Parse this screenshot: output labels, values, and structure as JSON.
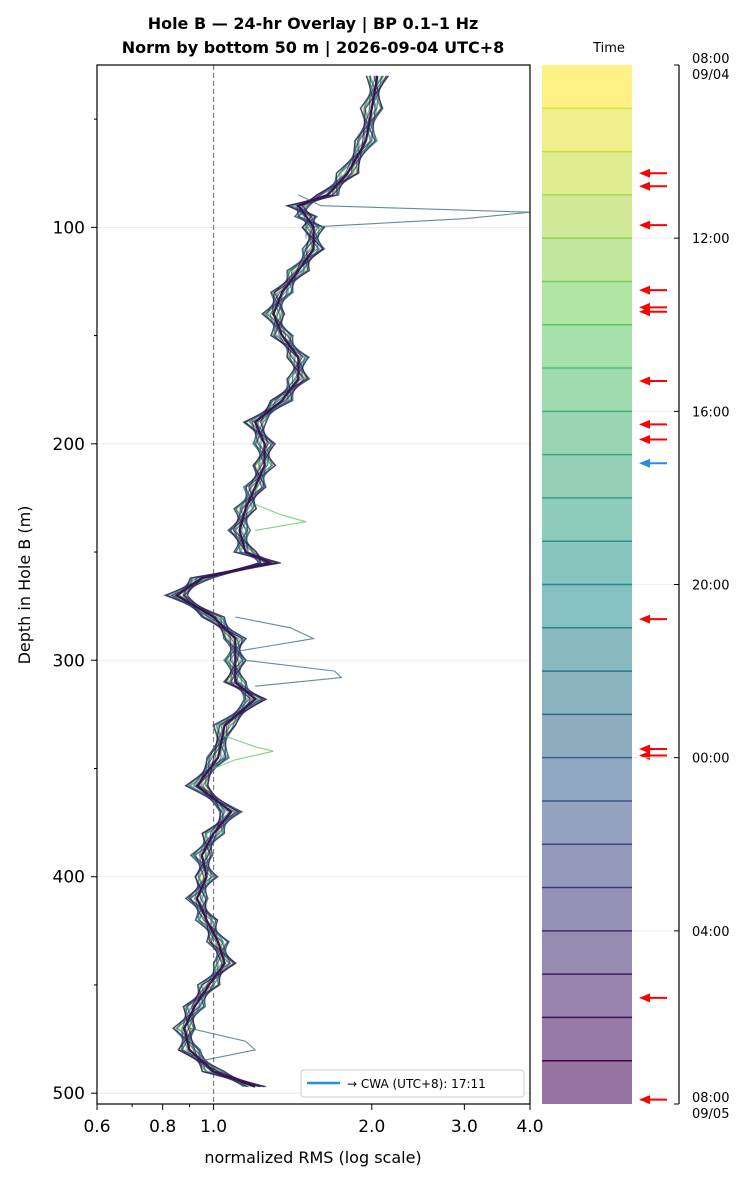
{
  "chart_data": {
    "type": "line",
    "title": "Hole B — 24-hr Overlay  |  BP 0.1–1 Hz",
    "subtitle": "Norm by bottom 50 m  |  2026-09-04 UTC+8",
    "xlabel": "normalized RMS  (log scale)",
    "ylabel": "Depth in Hole B (m)",
    "x_scale": "log",
    "xlim": [
      0.6,
      4.0
    ],
    "ylim": [
      505,
      25
    ],
    "x_ticks": [
      {
        "v": 0.6,
        "label": "0.6"
      },
      {
        "v": 0.8,
        "label": "0.8"
      },
      {
        "v": 1.0,
        "label": "1.0"
      },
      {
        "v": 2.0,
        "label": "2.0"
      },
      {
        "v": 3.0,
        "label": "3.0"
      },
      {
        "v": 4.0,
        "label": "4.0"
      }
    ],
    "y_ticks": [
      {
        "v": 100,
        "label": "100"
      },
      {
        "v": 200,
        "label": "200"
      },
      {
        "v": 300,
        "label": "300"
      },
      {
        "v": 400,
        "label": "400"
      },
      {
        "v": 500,
        "label": "500"
      }
    ],
    "reference_line_x": 1.0,
    "grid": true,
    "legend": {
      "position": "bottom-right",
      "entry": "→ CWA (UTC+8): 17:11",
      "color": "#2b8ae6"
    },
    "profile": {
      "depth": [
        30,
        45,
        60,
        75,
        85,
        90,
        95,
        100,
        110,
        120,
        130,
        140,
        150,
        160,
        170,
        180,
        190,
        200,
        210,
        220,
        230,
        240,
        250,
        255,
        262,
        270,
        280,
        290,
        300,
        310,
        318,
        330,
        345,
        358,
        370,
        380,
        390,
        400,
        410,
        420,
        430,
        440,
        450,
        460,
        470,
        480,
        490,
        497
      ],
      "value": [
        2.05,
        2.0,
        1.95,
        1.8,
        1.65,
        1.45,
        1.5,
        1.55,
        1.55,
        1.45,
        1.35,
        1.3,
        1.35,
        1.45,
        1.45,
        1.35,
        1.2,
        1.25,
        1.25,
        1.2,
        1.15,
        1.12,
        1.15,
        1.28,
        0.95,
        0.85,
        1.0,
        1.1,
        1.1,
        1.1,
        1.2,
        1.05,
        1.02,
        0.93,
        1.08,
        1.0,
        0.95,
        0.97,
        0.93,
        0.97,
        1.02,
        1.05,
        0.98,
        0.92,
        0.88,
        0.9,
        1.0,
        1.2
      ]
    },
    "outliers": [
      {
        "depth": [
          85,
          90,
          93,
          96,
          100,
          105
        ],
        "value": [
          1.45,
          1.6,
          4.0,
          3.0,
          1.5,
          1.5
        ]
      },
      {
        "depth": [
          228,
          233,
          236,
          240
        ],
        "value": [
          1.2,
          1.35,
          1.5,
          1.2
        ]
      },
      {
        "depth": [
          280,
          285,
          290,
          296,
          300,
          305,
          308,
          312
        ],
        "value": [
          1.1,
          1.4,
          1.55,
          1.1,
          1.15,
          1.7,
          1.75,
          1.2
        ]
      },
      {
        "depth": [
          335,
          340,
          342,
          346,
          350
        ],
        "value": [
          1.05,
          1.2,
          1.3,
          1.1,
          1.0
        ]
      },
      {
        "depth": [
          470,
          476,
          480,
          485
        ],
        "value": [
          0.9,
          1.15,
          1.2,
          0.95
        ]
      }
    ],
    "colorbar": {
      "title": "Time",
      "start_label": "08:00",
      "start_sub": "09/04",
      "end_label": "08:00",
      "end_sub": "09/05",
      "tick_labels": [
        "12:00",
        "16:00",
        "20:00",
        "00:00",
        "04:00"
      ],
      "tick_hours": [
        4,
        8,
        12,
        16,
        20
      ],
      "span_hours": 24,
      "bands": 24,
      "red_arrow_hours": [
        2.5,
        2.8,
        3.7,
        5.2,
        5.6,
        5.7,
        7.3,
        8.3,
        8.65,
        12.8,
        15.8,
        15.95,
        21.55,
        23.9
      ],
      "blue_arrow_hours": [
        9.2
      ],
      "red_color": "#ff0000",
      "blue_color": "#2b8ae6"
    }
  }
}
